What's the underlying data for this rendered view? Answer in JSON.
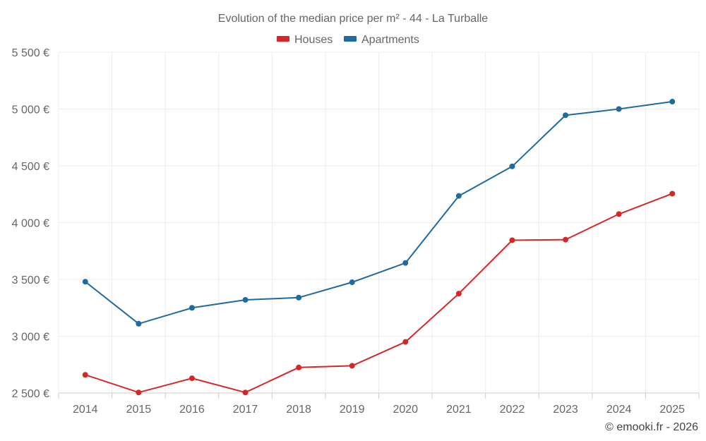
{
  "chart_data": {
    "type": "line",
    "title": "Evolution of the median price per m² - 44 - La Turballe",
    "categories": [
      "2014",
      "2015",
      "2016",
      "2017",
      "2018",
      "2019",
      "2020",
      "2021",
      "2022",
      "2023",
      "2024",
      "2025"
    ],
    "series": [
      {
        "name": "Houses",
        "color": "#d62728",
        "values": [
          2660,
          2505,
          2630,
          2505,
          2725,
          2740,
          2950,
          3375,
          3845,
          3850,
          4075,
          4255
        ]
      },
      {
        "name": "Apartments",
        "color": "#1f6aa0",
        "values": [
          3480,
          3110,
          3250,
          3320,
          3340,
          3475,
          3645,
          4235,
          4495,
          4945,
          5000,
          5065
        ]
      }
    ],
    "yticks": [
      2500,
      3000,
      3500,
      4000,
      4500,
      5000,
      5500
    ],
    "ytick_labels": [
      "2 500 €",
      "3 000 €",
      "3 500 €",
      "4 000 €",
      "4 500 €",
      "5 000 €",
      "5 500 €"
    ],
    "ylim": [
      2500,
      5500
    ],
    "xlabel": "",
    "ylabel": "",
    "legend": "top-center",
    "grid": true
  },
  "credit": "© emooki.fr - 2026"
}
